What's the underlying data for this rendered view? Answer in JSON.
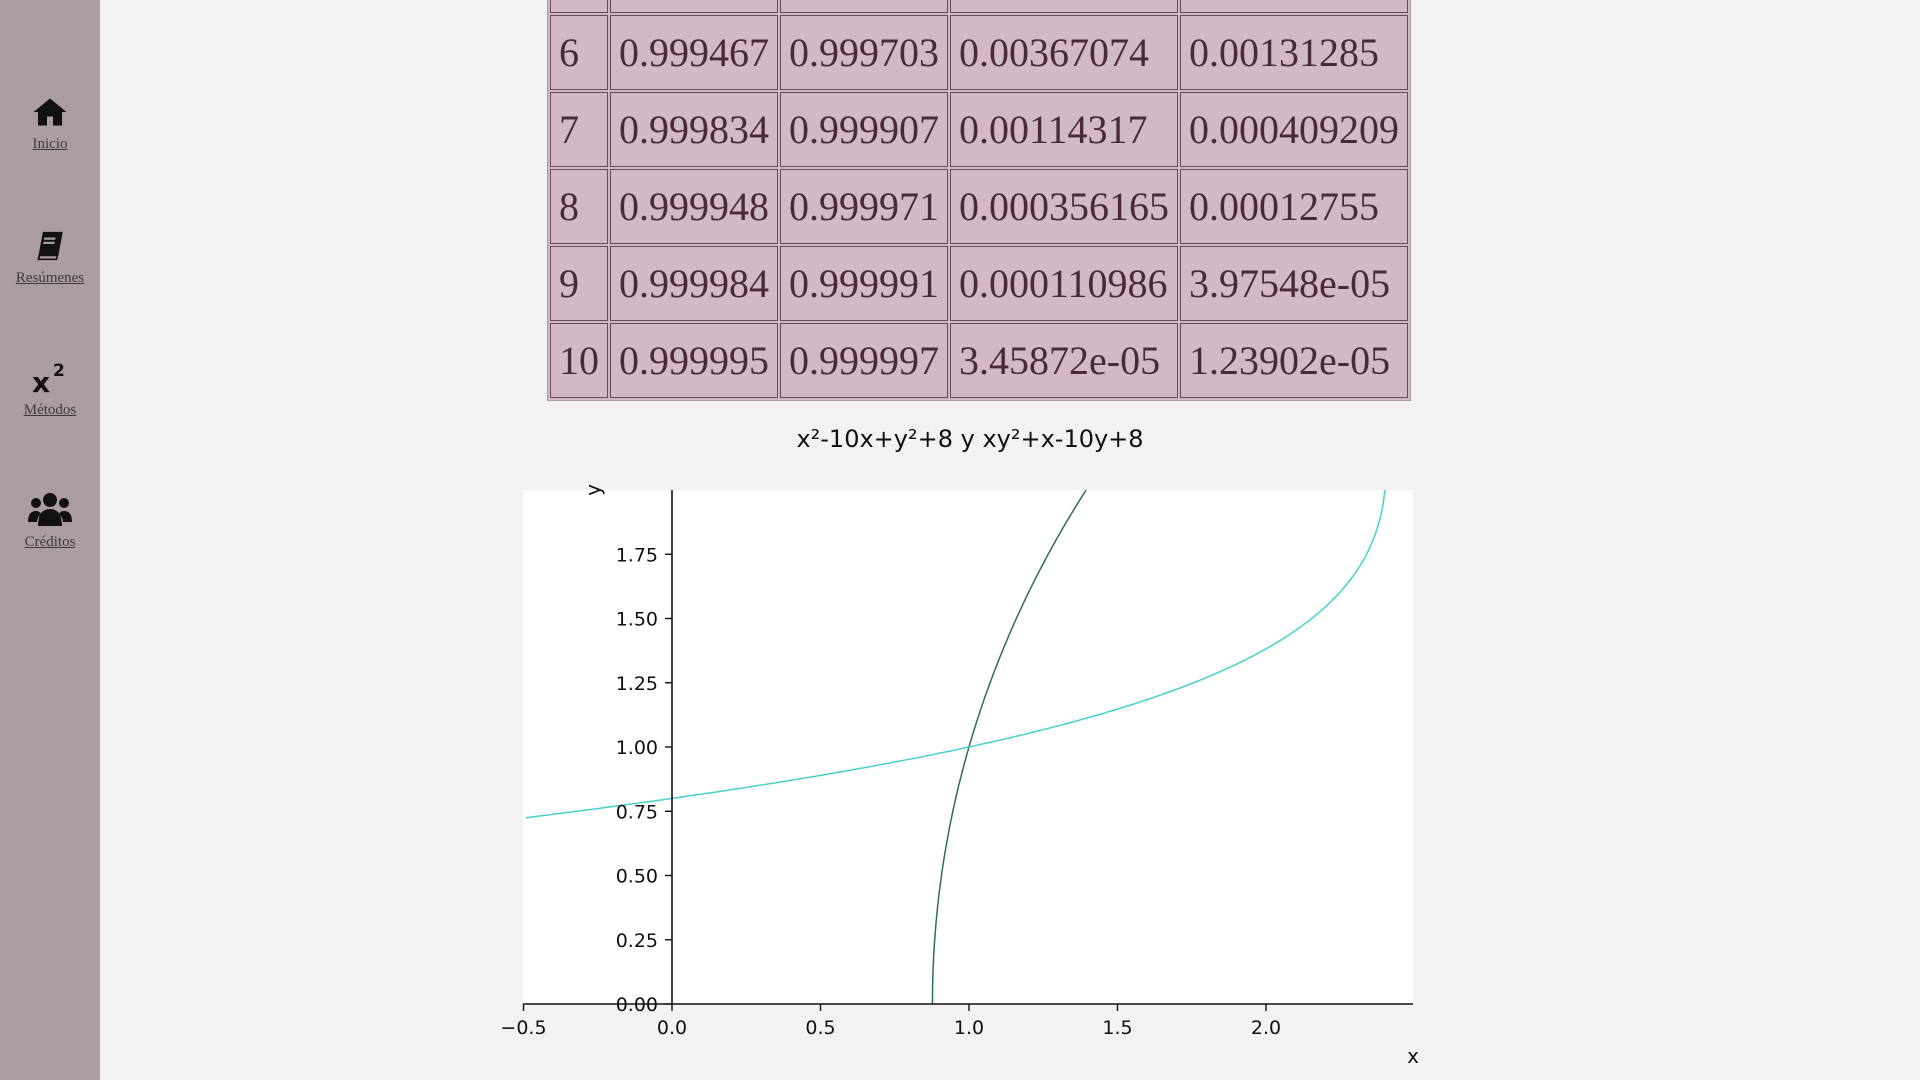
{
  "sidebar": {
    "items": [
      {
        "label": "Inicio",
        "icon": "home-icon"
      },
      {
        "label": "Resúmenes",
        "icon": "book-icon"
      },
      {
        "label": "Métodos",
        "icon": "x-squared-icon"
      },
      {
        "label": "Créditos",
        "icon": "users-icon"
      }
    ]
  },
  "table": {
    "rows": [
      [
        "6",
        "0.999467",
        "0.999703",
        "0.00367074",
        "0.00131285"
      ],
      [
        "7",
        "0.999834",
        "0.999907",
        "0.00114317",
        "0.000409209"
      ],
      [
        "8",
        "0.999948",
        "0.999971",
        "0.000356165",
        "0.00012755"
      ],
      [
        "9",
        "0.999984",
        "0.999991",
        "0.000110986",
        "3.97548e-05"
      ],
      [
        "10",
        "0.999995",
        "0.999997",
        "3.45872e-05",
        "1.23902e-05"
      ]
    ]
  },
  "chart_data": {
    "type": "line",
    "title": "x²-10x+y²+8  y  xy²+x-10y+8",
    "xlabel": "x",
    "ylabel": "y",
    "xlim": [
      -0.5,
      2.5
    ],
    "ylim": [
      0,
      2
    ],
    "xticks": [
      "−0.5",
      "0.0",
      "0.5",
      "1.0",
      "1.5",
      "2.0"
    ],
    "yticks": [
      "0.00",
      "0.25",
      "0.50",
      "0.75",
      "1.00",
      "1.25",
      "1.50",
      "1.75"
    ],
    "series": [
      {
        "equation": "x²-10x+y²+8=0",
        "color": "#2f6f4f",
        "points": [
          [
            0.8754,
            0.0
          ],
          [
            0.89,
            0.25
          ],
          [
            0.94,
            0.5
          ],
          [
            1.0,
            0.97
          ],
          [
            1.05,
            1.1
          ],
          [
            1.15,
            1.35
          ],
          [
            1.27,
            1.6
          ],
          [
            1.39,
            1.8
          ],
          [
            1.42,
            2.0
          ]
        ]
      },
      {
        "equation": "xy²+x-10y+8=0",
        "color": "#48d1cc",
        "points": [
          [
            -0.5,
            0.73
          ],
          [
            0.0,
            0.8
          ],
          [
            0.5,
            0.89
          ],
          [
            1.0,
            1.0
          ],
          [
            1.5,
            1.15
          ],
          [
            2.0,
            1.38
          ],
          [
            2.2,
            1.52
          ],
          [
            2.3,
            1.63
          ],
          [
            2.4,
            1.77
          ],
          [
            2.45,
            2.0
          ]
        ]
      }
    ]
  }
}
